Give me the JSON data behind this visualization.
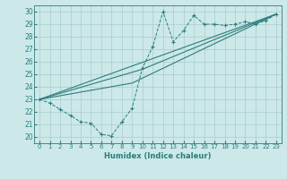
{
  "xlabel": "Humidex (Indice chaleur)",
  "bg_color": "#cce8e8",
  "grid_color": "#aacccc",
  "line_color": "#2d7d7d",
  "xlim": [
    -0.5,
    23.5
  ],
  "ylim": [
    19.5,
    30.5
  ],
  "xticks": [
    0,
    1,
    2,
    3,
    4,
    5,
    6,
    7,
    8,
    9,
    10,
    11,
    12,
    13,
    14,
    15,
    16,
    17,
    18,
    19,
    20,
    21,
    22,
    23
  ],
  "yticks": [
    20,
    21,
    22,
    23,
    24,
    25,
    26,
    27,
    28,
    29,
    30
  ],
  "line1_x": [
    0,
    1,
    2,
    3,
    4,
    5,
    6,
    7,
    8,
    9,
    10,
    11,
    12,
    13,
    14,
    15,
    16,
    17,
    18,
    19,
    20,
    21,
    22,
    23
  ],
  "line1_y": [
    23.0,
    22.7,
    22.2,
    21.7,
    21.2,
    21.1,
    20.2,
    20.1,
    21.2,
    22.3,
    25.5,
    27.2,
    30.0,
    27.6,
    28.5,
    29.7,
    29.0,
    29.0,
    28.9,
    29.0,
    29.2,
    29.0,
    29.3,
    29.8
  ],
  "line2_x": [
    0,
    23
  ],
  "line2_y": [
    23.0,
    29.8
  ],
  "line3_x": [
    0,
    10,
    23
  ],
  "line3_y": [
    23.0,
    25.4,
    29.8
  ],
  "line4_x": [
    0,
    9,
    23
  ],
  "line4_y": [
    23.0,
    24.3,
    29.8
  ]
}
